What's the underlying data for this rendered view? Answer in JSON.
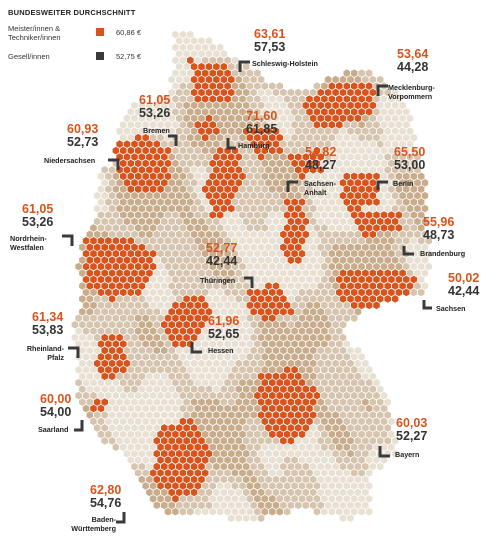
{
  "legend": {
    "title": "BUNDESWEITER DURCHSCHNITT",
    "items": [
      {
        "label": "Meister/innen & Techniker/innen",
        "value": "60,86 €",
        "color": "#d9541c"
      },
      {
        "label": "Gesell/innen",
        "value": "52,75 €",
        "color": "#3a3a3a"
      }
    ]
  },
  "colors": {
    "hex_light": "#e9e0d4",
    "hex_mid": "#d6c4ae",
    "hex_dark": "#c9ac8b",
    "hex_orange": "#d9541c",
    "marker": "#3a3a3a"
  },
  "states": [
    {
      "id": "schleswig-holstein",
      "name": "Schleswig-Holstein",
      "meister": "63,61",
      "gesellen": "57,53"
    },
    {
      "id": "mecklenburg-vorpommern",
      "name": "Mecklenburg-Vorpommern",
      "meister": "53,64",
      "gesellen": "44,28"
    },
    {
      "id": "hamburg",
      "name": "Hamburg",
      "meister": "71,60",
      "gesellen": "61,85"
    },
    {
      "id": "bremen",
      "name": "Bremen",
      "meister": "61,05",
      "gesellen": "53,26"
    },
    {
      "id": "niedersachsen",
      "name": "Niedersachsen",
      "meister": "60,93",
      "gesellen": "52,73"
    },
    {
      "id": "sachsen-anhalt",
      "name": "Sachsen-Anhalt",
      "meister": "54,82",
      "gesellen": "48,27"
    },
    {
      "id": "berlin",
      "name": "Berlin",
      "meister": "65,50",
      "gesellen": "53,00"
    },
    {
      "id": "brandenburg",
      "name": "Brandenburg",
      "meister": "55,96",
      "gesellen": "48,73"
    },
    {
      "id": "nordrhein-westfalen",
      "name": "Nordrhein-Westfalen",
      "meister": "61,05",
      "gesellen": "53,26"
    },
    {
      "id": "thueringen",
      "name": "Thüringen",
      "meister": "52,77",
      "gesellen": "42,44"
    },
    {
      "id": "sachsen",
      "name": "Sachsen",
      "meister": "50,02",
      "gesellen": "42,44"
    },
    {
      "id": "hessen",
      "name": "Hessen",
      "meister": "61,96",
      "gesellen": "52,65"
    },
    {
      "id": "rheinland-pfalz",
      "name": "Rheinland-Pfalz",
      "meister": "61,34",
      "gesellen": "53,83"
    },
    {
      "id": "saarland",
      "name": "Saarland",
      "meister": "60,00",
      "gesellen": "54,00"
    },
    {
      "id": "bayern",
      "name": "Bayern",
      "meister": "60,03",
      "gesellen": "52,27"
    },
    {
      "id": "baden-wuerttemberg",
      "name": "Baden-Württemberg",
      "meister": "62,80",
      "gesellen": "54,76"
    }
  ]
}
